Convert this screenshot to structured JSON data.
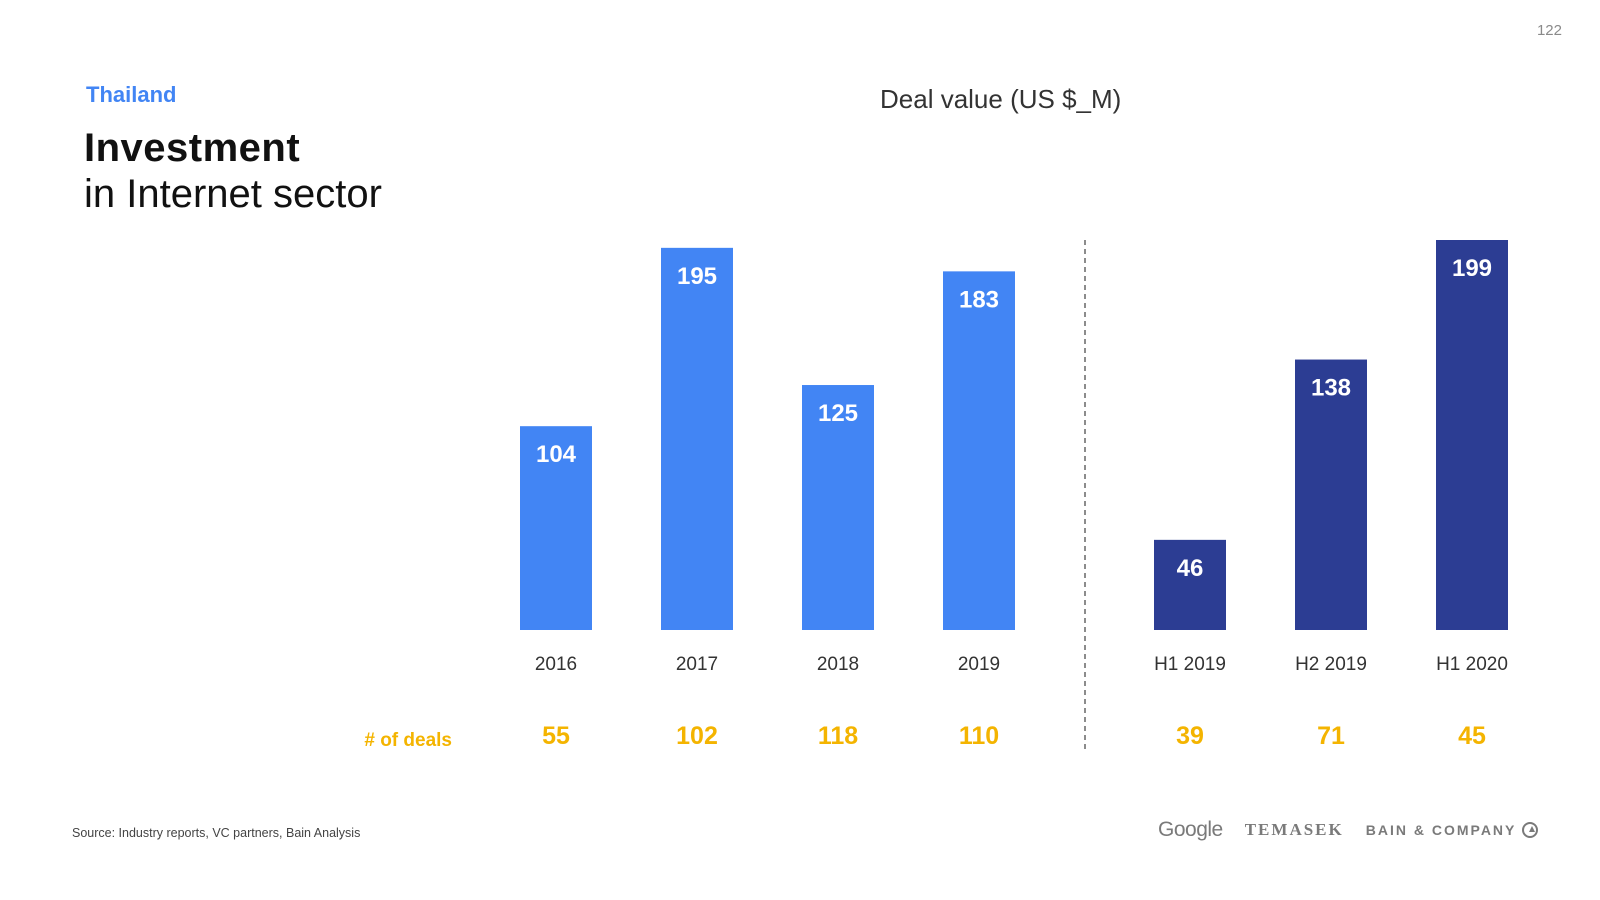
{
  "page": {
    "number": "122"
  },
  "header": {
    "country": "Thailand",
    "title": "Investment",
    "subtitle": "in Internet sector"
  },
  "chart_data": {
    "type": "bar",
    "title": "Deal value (US $_M)",
    "categories": [
      "2016",
      "2017",
      "2018",
      "2019",
      "H1 2019",
      "H2 2019",
      "H1 2020"
    ],
    "values": [
      104,
      195,
      125,
      183,
      46,
      138,
      199
    ],
    "groups": [
      {
        "categories": [
          "2016",
          "2017",
          "2018",
          "2019"
        ],
        "color": "#4285f4"
      },
      {
        "categories": [
          "H1 2019",
          "H2 2019",
          "H1 2020"
        ],
        "color": "#2c3d93"
      }
    ],
    "value_label_color": "#ffffff",
    "deals": {
      "label": "# of deals",
      "values": [
        55,
        102,
        118,
        110,
        39,
        71,
        45
      ],
      "color": "#f4b400"
    },
    "ylim": [
      0,
      199
    ],
    "grid": false,
    "separator": "dashed vertical line between annual and half-year groups"
  },
  "footer": {
    "source": "Source: Industry reports, VC partners, Bain Analysis",
    "logos": {
      "google": "Google",
      "temasek": "TEMASEK",
      "bain": "BAIN & COMPANY"
    }
  }
}
